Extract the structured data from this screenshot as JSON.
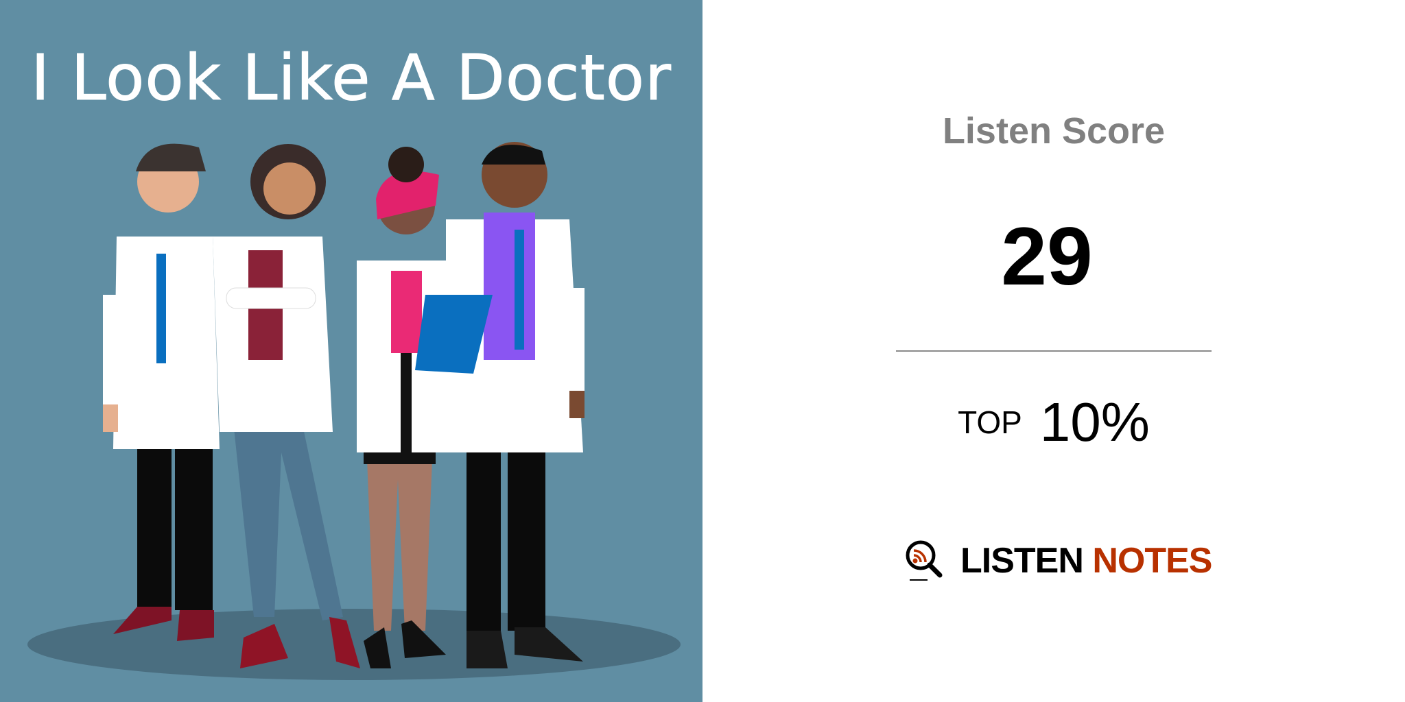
{
  "cover": {
    "title": "I Look Like A Doctor",
    "background_color": "#608ea3"
  },
  "score": {
    "label": "Listen Score",
    "value": "29",
    "rank_prefix": "TOP",
    "rank_value": "10%"
  },
  "logo": {
    "icon": "magnifier-rss-icon",
    "word1": "LISTEN",
    "word2": "NOTES",
    "accent_color": "#b83100"
  }
}
